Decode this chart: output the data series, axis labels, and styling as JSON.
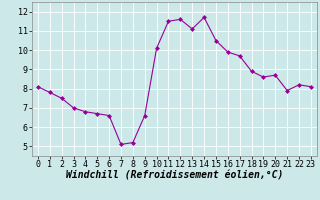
{
  "x": [
    0,
    1,
    2,
    3,
    4,
    5,
    6,
    7,
    8,
    9,
    10,
    11,
    12,
    13,
    14,
    15,
    16,
    17,
    18,
    19,
    20,
    21,
    22,
    23
  ],
  "y": [
    8.1,
    7.8,
    7.5,
    7.0,
    6.8,
    6.7,
    6.6,
    5.1,
    5.2,
    6.6,
    10.1,
    11.5,
    11.6,
    11.1,
    11.7,
    10.5,
    9.9,
    9.7,
    8.9,
    8.6,
    8.7,
    7.9,
    8.2,
    8.1
  ],
  "line_color": "#990099",
  "marker": "D",
  "marker_size": 2.0,
  "bg_color": "#cce8e8",
  "grid_color": "#ffffff",
  "xlabel": "Windchill (Refroidissement éolien,°C)",
  "xlim": [
    -0.5,
    23.5
  ],
  "ylim": [
    4.5,
    12.5
  ],
  "yticks": [
    5,
    6,
    7,
    8,
    9,
    10,
    11,
    12
  ],
  "xticks": [
    0,
    1,
    2,
    3,
    4,
    5,
    6,
    7,
    8,
    9,
    10,
    11,
    12,
    13,
    14,
    15,
    16,
    17,
    18,
    19,
    20,
    21,
    22,
    23
  ],
  "axis_fontsize": 6.5,
  "tick_fontsize": 6.0,
  "xlabel_fontsize": 7.0
}
